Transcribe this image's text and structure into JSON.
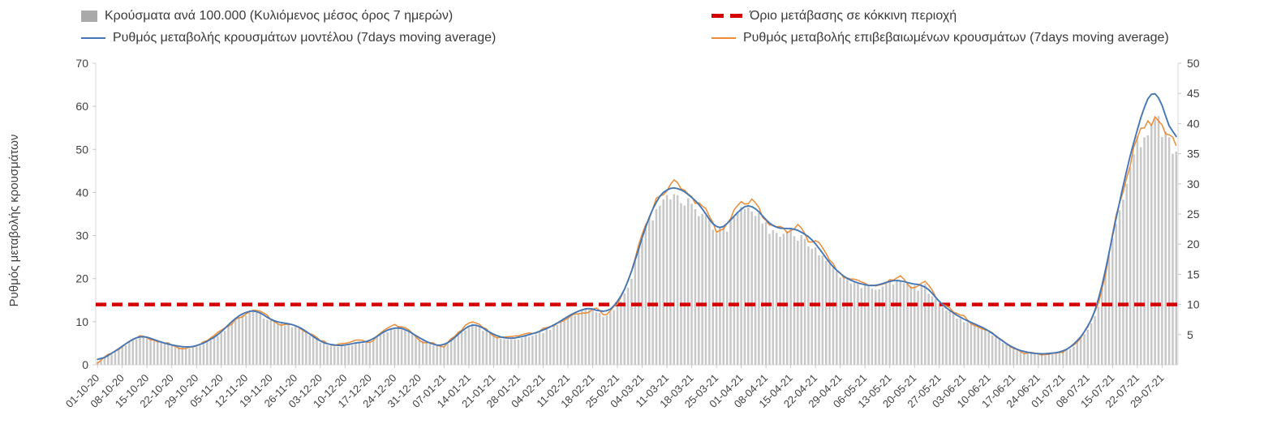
{
  "chart_data": {
    "type": "composite",
    "title": "",
    "left_axis": {
      "label": "Ρυθμός μεταβολής κρουσμάτων",
      "min": 0,
      "max": 70,
      "ticks": [
        0,
        10,
        20,
        30,
        40,
        50,
        60,
        70
      ]
    },
    "right_axis": {
      "min": 0,
      "max": 50,
      "ticks": [
        5,
        10,
        15,
        20,
        25,
        30,
        35,
        40,
        45,
        50
      ]
    },
    "x_axis": {
      "tick_labels": [
        "01-10-20",
        "08-10-20",
        "15-10-20",
        "22-10-20",
        "29-10-20",
        "05-11-20",
        "12-11-20",
        "19-11-20",
        "26-11-20",
        "03-12-20",
        "10-12-20",
        "17-12-20",
        "24-12-20",
        "31-12-20",
        "07-01-21",
        "14-01-21",
        "21-01-21",
        "28-01-21",
        "04-02-21",
        "11-02-21",
        "18-02-21",
        "25-02-21",
        "04-03-21",
        "11-03-21",
        "18-03-21",
        "25-03-21",
        "01-04-21",
        "08-04-21",
        "15-04-21",
        "22-04-21",
        "29-04-21",
        "06-05-21",
        "13-05-21",
        "20-05-21",
        "27-05-21",
        "03-06-21",
        "10-06-21",
        "17-06-21",
        "24-06-21",
        "01-07-21",
        "08-07-21",
        "15-07-21",
        "22-07-21",
        "29-07-21"
      ],
      "tick_interval_days": 7,
      "days_total": 306
    },
    "series": {
      "bars": {
        "name": "Κρούσματα ανά 100.000 (Κυλιόμενος μέσος όρος 7 ημερών)",
        "type": "bar",
        "axis": "right",
        "color": "#c8c8c8",
        "legend_color": "#a9a9a9",
        "note": "daily bars; values track the confirmed-cases curve (right axis 0-50 equals left axis 0-70)"
      },
      "model": {
        "name": "Ρυθμός μεταβολής κρουσμάτων μοντέλου (7days moving average)",
        "type": "line",
        "axis": "left",
        "color": "#4576b5",
        "keyframes": [
          [
            0,
            0.8
          ],
          [
            4,
            2.6
          ],
          [
            7,
            4.3
          ],
          [
            10,
            6.0
          ],
          [
            12,
            6.8
          ],
          [
            14,
            6.5
          ],
          [
            18,
            5.2
          ],
          [
            21,
            4.6
          ],
          [
            25,
            4.0
          ],
          [
            28,
            4.3
          ],
          [
            32,
            5.8
          ],
          [
            35,
            7.5
          ],
          [
            39,
            11.0
          ],
          [
            42,
            12.3
          ],
          [
            45,
            12.8
          ],
          [
            49,
            10.3
          ],
          [
            53,
            9.6
          ],
          [
            56,
            9.3
          ],
          [
            59,
            7.8
          ],
          [
            63,
            5.3
          ],
          [
            66,
            4.6
          ],
          [
            70,
            4.4
          ],
          [
            73,
            5.2
          ],
          [
            77,
            5.3
          ],
          [
            80,
            7.3
          ],
          [
            84,
            8.8
          ],
          [
            87,
            8.4
          ],
          [
            91,
            6.2
          ],
          [
            95,
            4.6
          ],
          [
            98,
            4.3
          ],
          [
            101,
            6.3
          ],
          [
            105,
            9.3
          ],
          [
            107,
            9.6
          ],
          [
            112,
            6.9
          ],
          [
            116,
            6.0
          ],
          [
            119,
            6.3
          ],
          [
            123,
            7.2
          ],
          [
            126,
            8.0
          ],
          [
            130,
            9.6
          ],
          [
            133,
            11.3
          ],
          [
            137,
            12.9
          ],
          [
            140,
            13.3
          ],
          [
            143,
            11.8
          ],
          [
            147,
            14.0
          ],
          [
            151,
            21.0
          ],
          [
            154,
            30.0
          ],
          [
            158,
            38.5
          ],
          [
            161,
            41.0
          ],
          [
            164,
            41.3
          ],
          [
            168,
            39.0
          ],
          [
            171,
            36.5
          ],
          [
            175,
            31.0
          ],
          [
            178,
            32.5
          ],
          [
            182,
            36.5
          ],
          [
            185,
            37.5
          ],
          [
            189,
            33.5
          ],
          [
            192,
            31.5
          ],
          [
            196,
            31.8
          ],
          [
            199,
            31.0
          ],
          [
            203,
            28.5
          ],
          [
            206,
            24.5
          ],
          [
            210,
            21.0
          ],
          [
            213,
            19.5
          ],
          [
            217,
            18.5
          ],
          [
            220,
            18.2
          ],
          [
            224,
            19.5
          ],
          [
            227,
            19.7
          ],
          [
            231,
            18.5
          ],
          [
            234,
            18.7
          ],
          [
            238,
            14.5
          ],
          [
            241,
            12.5
          ],
          [
            245,
            10.5
          ],
          [
            248,
            9.5
          ],
          [
            252,
            8.0
          ],
          [
            255,
            6.0
          ],
          [
            259,
            3.8
          ],
          [
            262,
            3.0
          ],
          [
            266,
            2.5
          ],
          [
            269,
            2.6
          ],
          [
            273,
            3.0
          ],
          [
            276,
            4.5
          ],
          [
            280,
            8.5
          ],
          [
            283,
            14.0
          ],
          [
            287,
            30.0
          ],
          [
            290,
            42.0
          ],
          [
            294,
            55.0
          ],
          [
            297,
            62.5
          ],
          [
            299,
            65.0
          ],
          [
            301,
            60.5
          ],
          [
            303,
            55.0
          ],
          [
            305,
            51.0
          ]
        ]
      },
      "confirmed": {
        "name": "Ρυθμός μεταβολής επιβεβαιωμένων κρουσμάτων (7days moving average)",
        "type": "line",
        "axis": "left",
        "color": "#ec8b33",
        "derived": "model keyframes plus tail delta plus small oscillation",
        "keyframes_delta": [
          [
            0,
            0
          ],
          [
            288,
            0
          ],
          [
            294,
            -2.0
          ],
          [
            297,
            -5.0
          ],
          [
            299,
            -7.0
          ],
          [
            301,
            -3.5
          ],
          [
            305,
            -1.5
          ]
        ]
      },
      "threshold": {
        "name": "Όριο μετάβασης σε κόκκινη περιοχή",
        "type": "dashed-line",
        "color": "#d40000",
        "value_left_axis": 14,
        "value_right_axis": 10
      }
    }
  }
}
